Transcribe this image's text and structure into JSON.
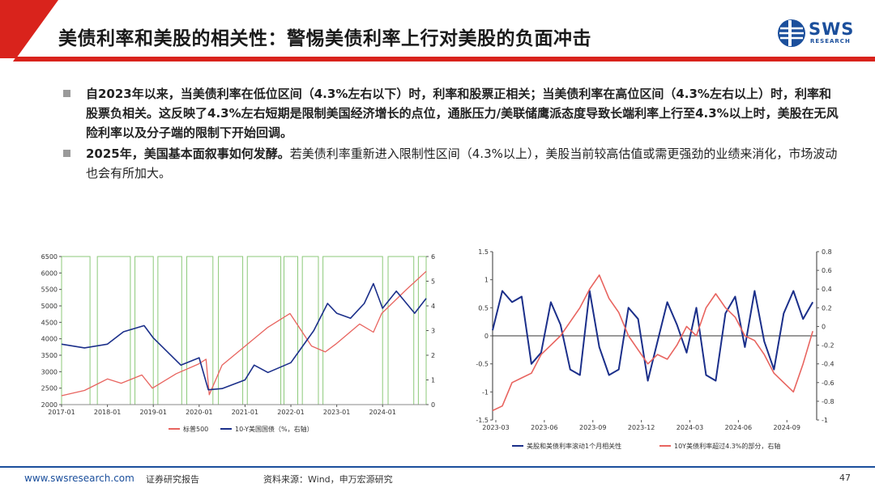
{
  "header": {
    "title": "美债利率和美股的相关性：警惕美债利率上行对美股的负面冲击",
    "logo_text": "SWS",
    "logo_sub": "RESEARCH"
  },
  "bullets": [
    {
      "bold": "自2023年以来，当美债利率在低位区间（4.3%左右以下）时，利率和股票正相关；当美债利率在高位区间（4.3%左右以上）时，利率和股票负相关。这反映了4.3%左右短期是限制美国经济增长的点位，通胀压力/美联储鹰派态度导致长端利率上行至4.3%以上时，美股在无风险利率以及分子端的限制下开始回调。",
      "normal": ""
    },
    {
      "bold": "2025年，美国基本面叙事如何发酵。",
      "normal": "若美债利率重新进入限制性区间（4.3%以上），美股当前较高估值或需更强劲的业绩来消化，市场波动也会有所加大。"
    }
  ],
  "colors": {
    "red": "#e8645f",
    "navy": "#1b2f8a",
    "green": "#8cc97a",
    "brand": "#1b4f9c",
    "accent": "#d9231c"
  },
  "chart_data": [
    {
      "type": "line",
      "x_ticks": [
        "2017-01",
        "2018-01",
        "2019-01",
        "2020-01",
        "2021-01",
        "2022-01",
        "2023-01",
        "2024-01"
      ],
      "y_left_ticks": [
        2000,
        2500,
        3000,
        3500,
        4000,
        4500,
        5000,
        5500,
        6000,
        6500
      ],
      "y_right_ticks": [
        0,
        1,
        2,
        3,
        4,
        5,
        6
      ],
      "ylim_left": [
        2000,
        6500
      ],
      "ylim_right": [
        0,
        6
      ],
      "xlim": [
        2017.0,
        2024.95
      ],
      "shaded_periods": [
        [
          2017.0,
          2017.62
        ],
        [
          2017.78,
          2018.5
        ],
        [
          2018.6,
          2019.0
        ],
        [
          2019.1,
          2019.62
        ],
        [
          2019.73,
          2020.3
        ],
        [
          2020.42,
          2020.95
        ],
        [
          2021.05,
          2021.78
        ],
        [
          2021.85,
          2022.15
        ],
        [
          2022.25,
          2022.6
        ],
        [
          2022.7,
          2024.0
        ],
        [
          2024.12,
          2024.68
        ],
        [
          2024.78,
          2024.95
        ]
      ],
      "series": [
        {
          "name": "标普500",
          "axis": "left",
          "x": [
            2017.0,
            2017.5,
            2018.0,
            2018.3,
            2018.75,
            2018.98,
            2019.5,
            2019.98,
            2020.15,
            2020.22,
            2020.5,
            2020.98,
            2021.5,
            2021.98,
            2022.45,
            2022.75,
            2022.98,
            2023.5,
            2023.8,
            2023.98,
            2024.5,
            2024.95
          ],
          "values": [
            2270,
            2430,
            2780,
            2650,
            2900,
            2500,
            2940,
            3230,
            3380,
            2300,
            3200,
            3750,
            4350,
            4770,
            3780,
            3600,
            3840,
            4450,
            4200,
            4770,
            5470,
            6050
          ]
        },
        {
          "name": "10-Y美国国债（%，右轴）",
          "axis": "right",
          "x": [
            2017.0,
            2017.5,
            2018.0,
            2018.35,
            2018.8,
            2019.0,
            2019.6,
            2020.0,
            2020.2,
            2020.5,
            2021.0,
            2021.2,
            2021.5,
            2022.0,
            2022.5,
            2022.8,
            2023.0,
            2023.3,
            2023.6,
            2023.8,
            2024.0,
            2024.3,
            2024.7,
            2024.95
          ],
          "values": [
            2.45,
            2.3,
            2.45,
            2.95,
            3.2,
            2.7,
            1.6,
            1.9,
            0.6,
            0.65,
            1.0,
            1.6,
            1.3,
            1.7,
            3.0,
            4.1,
            3.7,
            3.5,
            4.1,
            4.9,
            3.9,
            4.6,
            3.7,
            4.3
          ]
        }
      ]
    },
    {
      "type": "line",
      "x_ticks": [
        "2023-03",
        "2023-06",
        "2023-09",
        "2023-12",
        "2024-03",
        "2024-06",
        "2024-09"
      ],
      "y_left_ticks": [
        -1.5,
        -1,
        -0.5,
        0,
        0.5,
        1,
        1.5
      ],
      "y_right_ticks": [
        -1,
        -0.8,
        -0.6,
        -0.4,
        -0.2,
        0,
        0.2,
        0.4,
        0.6,
        0.8
      ],
      "ylim_left": [
        -1.5,
        1.5
      ],
      "ylim_right": [
        -1,
        0.8
      ],
      "xlim": [
        2023.15,
        2024.82
      ],
      "series": [
        {
          "name": "美股和美债利率滚动1个月相关性",
          "axis": "left",
          "x": [
            2023.15,
            2023.2,
            2023.25,
            2023.3,
            2023.35,
            2023.4,
            2023.45,
            2023.5,
            2023.55,
            2023.6,
            2023.65,
            2023.7,
            2023.75,
            2023.8,
            2023.85,
            2023.9,
            2023.95,
            2024.0,
            2024.05,
            2024.1,
            2024.15,
            2024.2,
            2024.25,
            2024.3,
            2024.35,
            2024.4,
            2024.45,
            2024.5,
            2024.55,
            2024.6,
            2024.65,
            2024.7,
            2024.75,
            2024.8
          ],
          "values": [
            0.1,
            0.8,
            0.6,
            0.7,
            -0.5,
            -0.3,
            0.6,
            0.2,
            -0.6,
            -0.7,
            0.8,
            -0.2,
            -0.7,
            -0.6,
            0.5,
            0.3,
            -0.8,
            -0.1,
            0.6,
            0.2,
            -0.3,
            0.5,
            -0.7,
            -0.8,
            0.4,
            0.7,
            -0.2,
            0.8,
            -0.1,
            -0.6,
            0.4,
            0.8,
            0.3,
            0.6
          ]
        },
        {
          "name": "10Y美债利率超过4.3%的部分，右轴",
          "axis": "right",
          "x": [
            2023.15,
            2023.2,
            2023.25,
            2023.3,
            2023.35,
            2023.4,
            2023.45,
            2023.5,
            2023.55,
            2023.6,
            2023.65,
            2023.7,
            2023.75,
            2023.8,
            2023.85,
            2023.9,
            2023.95,
            2024.0,
            2024.05,
            2024.1,
            2024.15,
            2024.2,
            2024.25,
            2024.3,
            2024.35,
            2024.4,
            2024.45,
            2024.5,
            2024.55,
            2024.6,
            2024.65,
            2024.7,
            2024.75,
            2024.8
          ],
          "values": [
            -0.9,
            -0.85,
            -0.6,
            -0.55,
            -0.5,
            -0.3,
            -0.2,
            -0.1,
            0.05,
            0.2,
            0.4,
            0.55,
            0.3,
            0.15,
            -0.1,
            -0.25,
            -0.4,
            -0.3,
            -0.35,
            -0.2,
            0.0,
            -0.1,
            0.2,
            0.35,
            0.2,
            0.1,
            -0.1,
            -0.15,
            -0.3,
            -0.5,
            -0.6,
            -0.7,
            -0.4,
            -0.05
          ]
        }
      ]
    }
  ],
  "footer": {
    "site": "www.swsresearch.com",
    "report": "证券研究报告",
    "source": "资料来源：Wind，申万宏源研究",
    "page": "47"
  }
}
